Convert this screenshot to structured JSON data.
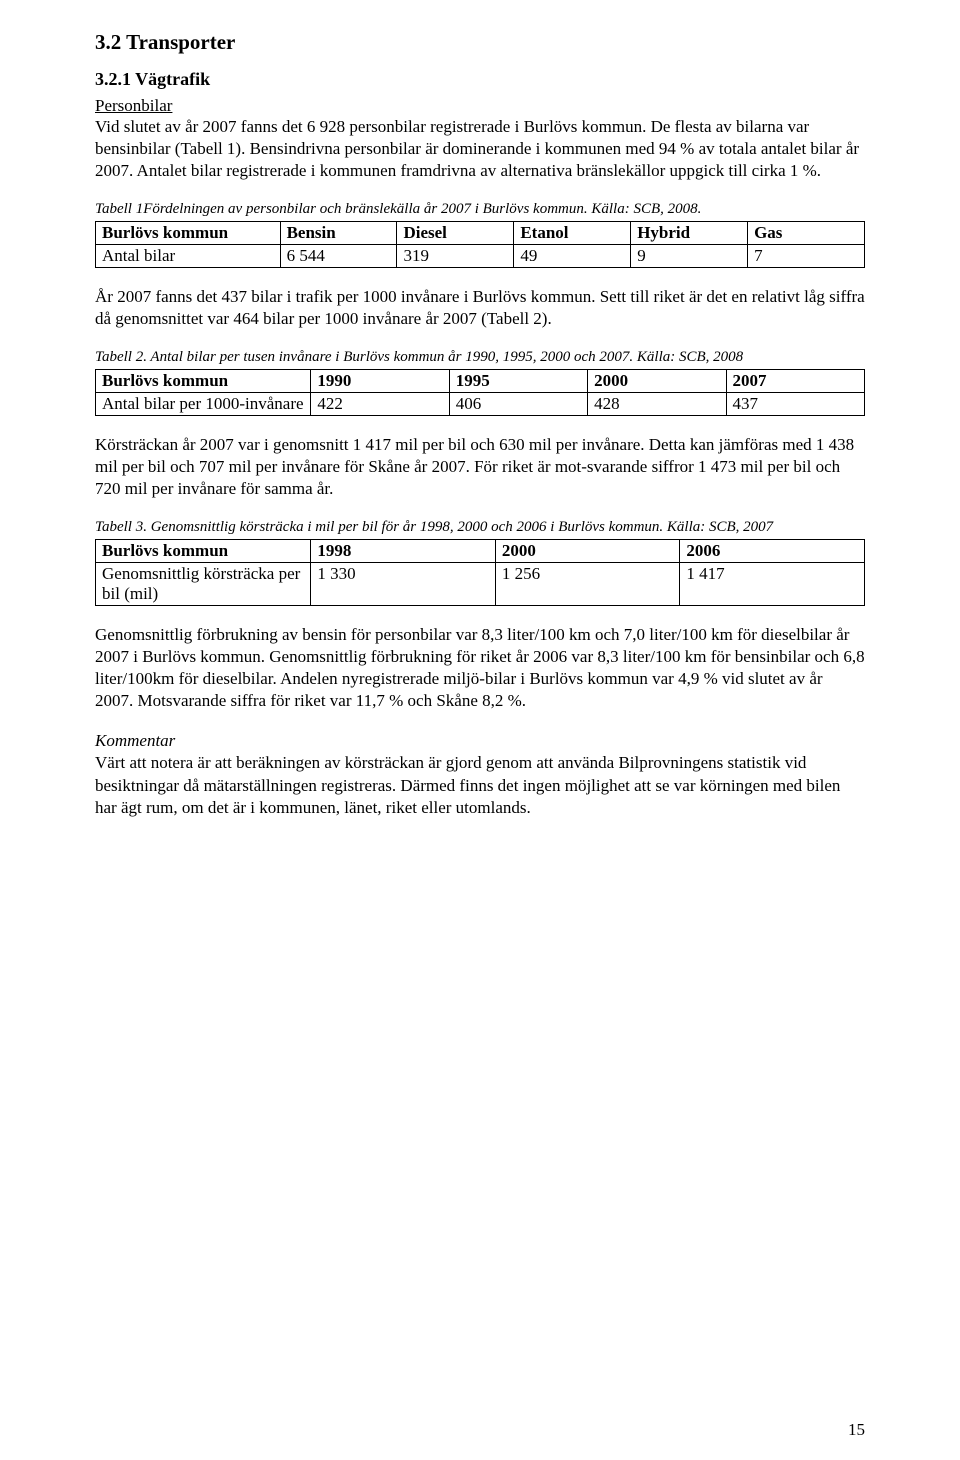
{
  "section": {
    "title": "3.2 Transporter",
    "subsection_title": "3.2.1 Vägtrafik",
    "personbilar_heading": "Personbilar",
    "intro_para": "Vid slutet av år 2007 fanns det 6 928 personbilar registrerade i Burlövs kommun. De flesta av bilarna var bensinbilar (Tabell 1). Bensindrivna personbilar är dominerande i kommunen med 94 % av totala antalet bilar år 2007. Antalet bilar registrerade i kommunen framdrivna av alternativa bränslekällor uppgick till cirka 1 %."
  },
  "table1": {
    "caption": "Tabell 1Fördelningen av personbilar och bränslekälla år 2007 i Burlövs kommun. Källa: SCB, 2008.",
    "headers": [
      "Burlövs kommun",
      "Bensin",
      "Diesel",
      "Etanol",
      "Hybrid",
      "Gas"
    ],
    "row_label": "Antal bilar",
    "values": [
      "6 544",
      "319",
      "49",
      "9",
      "7"
    ],
    "col_widths": [
      "24%",
      "15.2%",
      "15.2%",
      "15.2%",
      "15.2%",
      "15.2%"
    ]
  },
  "para2": "År 2007 fanns det 437 bilar i trafik per 1000 invånare i Burlövs kommun. Sett till riket är det en relativt låg siffra då genomsnittet var 464 bilar per 1000 invånare år 2007 (Tabell 2).",
  "table2": {
    "caption": "Tabell 2. Antal bilar per tusen invånare i Burlövs kommun år 1990, 1995, 2000 och 2007. Källa: SCB, 2008",
    "headers": [
      "Burlövs kommun",
      "1990",
      "1995",
      "2000",
      "2007"
    ],
    "row_label": "Antal bilar per 1000-invånare",
    "values": [
      "422",
      "406",
      "428",
      "437"
    ],
    "col_widths": [
      "28%",
      "18%",
      "18%",
      "18%",
      "18%"
    ]
  },
  "para3": "Körsträckan år 2007 var i genomsnitt 1 417 mil per bil och 630 mil per invånare. Detta kan jämföras med 1 438 mil per bil och 707 mil per invånare för Skåne år 2007. För riket är mot-svarande siffror 1 473 mil per bil och 720 mil per invånare för samma år.",
  "table3": {
    "caption": "Tabell 3. Genomsnittlig körsträcka i mil per bil för år 1998, 2000 och 2006 i Burlövs kommun. Källa: SCB, 2007",
    "headers": [
      "Burlövs kommun",
      "1998",
      "2000",
      "2006"
    ],
    "row_label": "Genomsnittlig körsträcka per bil (mil)",
    "values": [
      "1 330",
      "1 256",
      "1 417"
    ],
    "col_widths": [
      "28%",
      "24%",
      "24%",
      "24%"
    ]
  },
  "para4": "Genomsnittlig förbrukning av bensin för personbilar var 8,3 liter/100 km och 7,0 liter/100 km för dieselbilar år 2007 i Burlövs kommun. Genomsnittlig förbrukning för riket år 2006 var 8,3 liter/100 km för bensinbilar och 6,8 liter/100km för dieselbilar. Andelen nyregistrerade miljö-bilar i Burlövs kommun var 4,9 % vid slutet av år 2007. Motsvarande siffra för riket var 11,7 % och Skåne 8,2 %.",
  "kommentar_heading": "Kommentar",
  "kommentar_body": "Värt att notera är att beräkningen av körsträckan är gjord genom att använda Bilprovningens statistik vid besiktningar då mätarställningen registreras. Därmed finns det ingen möjlighet att se var körningen med bilen har ägt rum, om det är i kommunen, länet, riket eller utomlands.",
  "page_number": "15"
}
